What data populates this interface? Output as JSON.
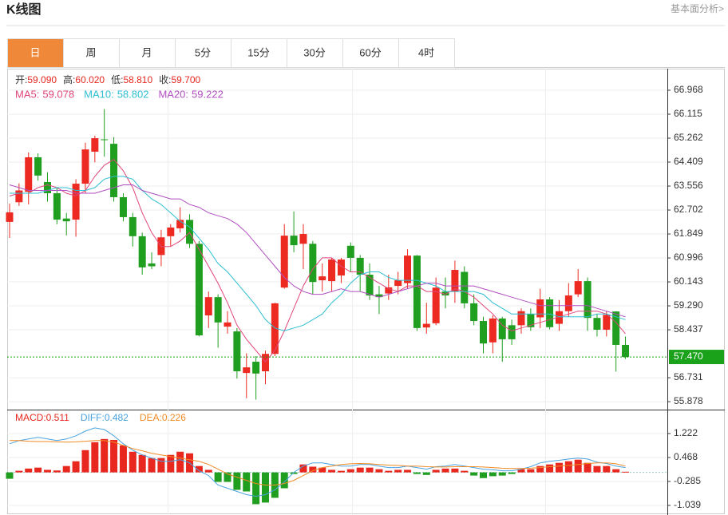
{
  "header": {
    "title": "K线图",
    "link": "基本面分析>"
  },
  "tabs": [
    "日",
    "周",
    "月",
    "5分",
    "15分",
    "30分",
    "60分",
    "4时"
  ],
  "active_tab": 0,
  "chart_data": [
    {
      "type": "candlestick",
      "ohlc_legend": [
        {
          "label": "开:",
          "value": "59.090"
        },
        {
          "label": "高:",
          "value": "60.020"
        },
        {
          "label": "低:",
          "value": "58.810"
        },
        {
          "label": "收:",
          "value": "59.700"
        }
      ],
      "up_color": "#ec2a22",
      "down_color": "#1f9e1f",
      "open": [
        62.28,
        62.98,
        63.35,
        64.58,
        63.7,
        63.3,
        62.4,
        62.36,
        63.64,
        64.78,
        65.22,
        65.06,
        63.16,
        62.45,
        61.77,
        60.8,
        61.1,
        61.77,
        62.05,
        62.35,
        61.5,
        58.95,
        59.6,
        58.55,
        58.38,
        56.9,
        57.3,
        56.96,
        57.58,
        59.94,
        61.79,
        61.5,
        61.5,
        60.2,
        60.17,
        60.37,
        61.43,
        61.0,
        60.4,
        59.7,
        59.73,
        60.0,
        60.1,
        61.08,
        58.52,
        58.67,
        59.8,
        59.8,
        60.5,
        59.38,
        58.75,
        57.99,
        58.84,
        58.6,
        58.6,
        59.0,
        58.88,
        59.52,
        58.65,
        59.1,
        59.7,
        60.17,
        58.86,
        58.44,
        59.09,
        57.9
      ],
      "high": [
        62.93,
        63.65,
        64.75,
        64.72,
        64.05,
        63.5,
        62.6,
        63.8,
        65.1,
        65.35,
        66.3,
        65.3,
        63.3,
        62.6,
        61.9,
        61.2,
        62.0,
        62.2,
        62.8,
        62.55,
        61.6,
        59.8,
        59.7,
        59.1,
        58.5,
        57.6,
        57.5,
        57.7,
        59.4,
        62.2,
        62.65,
        62.2,
        61.6,
        60.8,
        61.0,
        61.0,
        61.55,
        61.1,
        60.8,
        60.0,
        60.4,
        60.5,
        61.3,
        61.1,
        59.4,
        60.3,
        60.3,
        60.9,
        60.7,
        59.7,
        58.9,
        58.95,
        58.9,
        58.8,
        59.2,
        59.2,
        59.9,
        59.6,
        59.5,
        60.1,
        60.6,
        60.3,
        59.0,
        59.1,
        59.1,
        58.2
      ],
      "low": [
        61.71,
        62.85,
        62.9,
        63.75,
        63.0,
        62.2,
        61.8,
        61.75,
        63.3,
        64.4,
        64.6,
        63.0,
        62.3,
        61.4,
        60.4,
        60.6,
        60.7,
        61.4,
        61.9,
        61.35,
        58.2,
        58.5,
        57.8,
        58.3,
        56.7,
        56.0,
        55.95,
        56.5,
        57.5,
        59.9,
        61.2,
        60.6,
        59.7,
        59.8,
        59.8,
        60.1,
        60.5,
        59.8,
        59.5,
        59.0,
        59.5,
        59.7,
        59.9,
        58.4,
        58.3,
        58.6,
        59.2,
        59.4,
        59.2,
        58.6,
        57.6,
        57.6,
        57.3,
        57.9,
        58.3,
        58.4,
        58.5,
        58.45,
        58.4,
        58.9,
        59.6,
        58.4,
        58.2,
        58.2,
        56.95,
        57.4
      ],
      "close": [
        62.62,
        63.4,
        64.58,
        63.93,
        63.3,
        62.36,
        62.3,
        63.64,
        64.86,
        65.26,
        65.2,
        63.16,
        62.45,
        61.77,
        60.66,
        60.7,
        61.73,
        62.08,
        62.35,
        61.5,
        58.24,
        59.6,
        58.7,
        58.7,
        56.96,
        57.1,
        56.88,
        57.58,
        59.38,
        61.79,
        61.45,
        61.85,
        60.14,
        60.34,
        60.94,
        60.94,
        61.0,
        60.4,
        59.66,
        59.6,
        59.95,
        60.2,
        61.08,
        58.5,
        58.65,
        59.94,
        59.66,
        60.57,
        59.38,
        58.75,
        57.95,
        58.84,
        58.1,
        58.1,
        59.1,
        58.53,
        59.52,
        58.53,
        59.1,
        59.66,
        60.17,
        58.86,
        58.44,
        58.97,
        57.9,
        57.47
      ],
      "series": [
        {
          "name": "MA5:",
          "legend_value": 59.078,
          "color": "#e0457b",
          "values": [
            63.2,
            63.3,
            63.3,
            63.5,
            63.6,
            63.5,
            63.3,
            63.2,
            63.4,
            63.9,
            64.3,
            64.5,
            64.1,
            63.5,
            62.6,
            61.9,
            61.4,
            61.4,
            61.6,
            61.9,
            61.3,
            60.7,
            60.1,
            59.4,
            58.6,
            58.1,
            57.7,
            57.3,
            57.7,
            58.4,
            59.2,
            60.0,
            60.6,
            61.0,
            61.0,
            60.7,
            60.5,
            60.5,
            60.3,
            60.1,
            59.9,
            59.8,
            60.0,
            60.0,
            59.8,
            59.8,
            59.7,
            59.9,
            59.8,
            59.6,
            59.3,
            59.0,
            58.6,
            58.4,
            58.5,
            58.6,
            58.7,
            58.8,
            58.9,
            59.0,
            59.1,
            59.1,
            59.1,
            59.0,
            58.7,
            58.3
          ]
        },
        {
          "name": "MA10:",
          "legend_value": 58.802,
          "color": "#2ebfd2",
          "values": [
            63.3,
            63.3,
            63.3,
            63.3,
            63.4,
            63.5,
            63.5,
            63.4,
            63.4,
            63.5,
            63.8,
            63.9,
            63.9,
            63.8,
            63.4,
            63.1,
            62.9,
            62.6,
            62.3,
            62.1,
            61.7,
            61.3,
            60.8,
            60.5,
            60.1,
            59.7,
            59.3,
            58.8,
            58.5,
            58.4,
            58.5,
            58.6,
            58.8,
            59.0,
            59.4,
            59.7,
            60.1,
            60.4,
            60.5,
            60.5,
            60.3,
            60.2,
            60.2,
            60.2,
            60.1,
            60.0,
            59.8,
            59.8,
            59.8,
            59.8,
            59.7,
            59.4,
            59.2,
            59.0,
            59.0,
            59.0,
            59.0,
            59.0,
            58.9,
            58.9,
            58.9,
            58.9,
            59.0,
            59.0,
            58.9,
            58.8
          ]
        },
        {
          "name": "MA20:",
          "legend_value": 59.222,
          "color": "#b04fc0",
          "values": [
            63.6,
            63.5,
            63.4,
            63.4,
            63.4,
            63.4,
            63.4,
            63.3,
            63.3,
            63.3,
            63.4,
            63.5,
            63.6,
            63.6,
            63.4,
            63.3,
            63.2,
            63.1,
            63.1,
            62.9,
            62.8,
            62.6,
            62.5,
            62.4,
            62.2,
            61.9,
            61.5,
            61.1,
            60.7,
            60.3,
            60.0,
            59.8,
            59.7,
            59.7,
            59.8,
            59.9,
            59.8,
            59.8,
            59.7,
            59.6,
            59.7,
            59.8,
            59.9,
            60.0,
            60.1,
            60.1,
            60.0,
            60.0,
            60.0,
            60.0,
            59.9,
            59.8,
            59.7,
            59.6,
            59.5,
            59.4,
            59.3,
            59.3,
            59.3,
            59.3,
            59.3,
            59.3,
            59.2,
            59.1,
            59.0,
            58.9
          ]
        }
      ],
      "current_price": {
        "value": 57.47,
        "label": "57.470"
      },
      "current_color": "#1aa21a",
      "ylim": [
        55.624,
        67.736
      ],
      "yticks": [
        66.968,
        66.115,
        65.262,
        64.409,
        63.556,
        62.702,
        61.849,
        60.996,
        60.143,
        {
          "value": 59.29,
          "label": "59.290"
        },
        58.437,
        56.731,
        55.878
      ],
      "grid": true
    },
    {
      "type": "macd",
      "ylim": [
        -1.341,
        1.95
      ],
      "yticks": [
        1.222,
        0.468,
        -0.285,
        -1.039
      ],
      "grid": true,
      "series": [
        {
          "name": "MACD:",
          "legend_value": 0.511,
          "color": "#e8271f",
          "down_color": "#1f9e1f",
          "kind": "bar",
          "values": [
            -0.2,
            0.05,
            0.12,
            0.15,
            0.08,
            0.06,
            0.2,
            0.35,
            0.7,
            0.95,
            1.05,
            1.02,
            0.85,
            0.65,
            0.55,
            0.45,
            0.45,
            0.55,
            0.65,
            0.6,
            0.2,
            0.08,
            -0.3,
            -0.3,
            -0.55,
            -0.6,
            -1.0,
            -0.95,
            -0.8,
            -0.5,
            -0.05,
            0.25,
            0.18,
            0.15,
            0.08,
            0.05,
            0.1,
            0.15,
            0.15,
            0.1,
            0.05,
            0.08,
            0.08,
            -0.05,
            -0.08,
            0.08,
            0.12,
            0.12,
            0.05,
            -0.1,
            -0.18,
            -0.12,
            -0.1,
            -0.05,
            0.1,
            0.1,
            0.2,
            0.25,
            0.3,
            0.35,
            0.4,
            0.3,
            0.2,
            0.2,
            0.1,
            0.02
          ]
        },
        {
          "name": "DIFF:",
          "legend_value": 0.482,
          "color": "#4aa3df",
          "kind": "line",
          "values": [
            0.9,
            1.0,
            1.05,
            1.1,
            1.05,
            1.0,
            1.05,
            1.15,
            1.3,
            1.4,
            1.35,
            1.15,
            0.9,
            0.7,
            0.55,
            0.45,
            0.35,
            0.35,
            0.4,
            0.3,
            0.05,
            -0.1,
            -0.4,
            -0.5,
            -0.6,
            -0.7,
            -0.75,
            -0.7,
            -0.55,
            -0.3,
            0.0,
            0.2,
            0.3,
            0.3,
            0.25,
            0.2,
            0.2,
            0.25,
            0.25,
            0.2,
            0.15,
            0.15,
            0.2,
            0.15,
            0.1,
            0.18,
            0.2,
            0.25,
            0.2,
            0.15,
            0.1,
            0.08,
            0.05,
            0.05,
            0.1,
            0.18,
            0.3,
            0.35,
            0.38,
            0.42,
            0.45,
            0.42,
            0.32,
            0.28,
            0.2,
            0.15
          ]
        },
        {
          "name": "DEA:",
          "legend_value": 0.226,
          "color": "#f08a24",
          "kind": "line",
          "values": [
            1.0,
            1.0,
            0.98,
            0.97,
            0.97,
            0.96,
            0.95,
            0.96,
            0.98,
            1.0,
            1.0,
            0.95,
            0.85,
            0.75,
            0.68,
            0.6,
            0.55,
            0.5,
            0.45,
            0.4,
            0.35,
            0.25,
            0.1,
            -0.05,
            -0.15,
            -0.25,
            -0.35,
            -0.4,
            -0.4,
            -0.35,
            -0.25,
            -0.1,
            0.05,
            0.15,
            0.2,
            0.25,
            0.27,
            0.28,
            0.27,
            0.25,
            0.23,
            0.22,
            0.2,
            0.2,
            0.18,
            0.17,
            0.17,
            0.18,
            0.18,
            0.18,
            0.17,
            0.15,
            0.13,
            0.12,
            0.12,
            0.13,
            0.15,
            0.18,
            0.2,
            0.22,
            0.25,
            0.28,
            0.3,
            0.3,
            0.27,
            0.2
          ]
        }
      ]
    }
  ]
}
